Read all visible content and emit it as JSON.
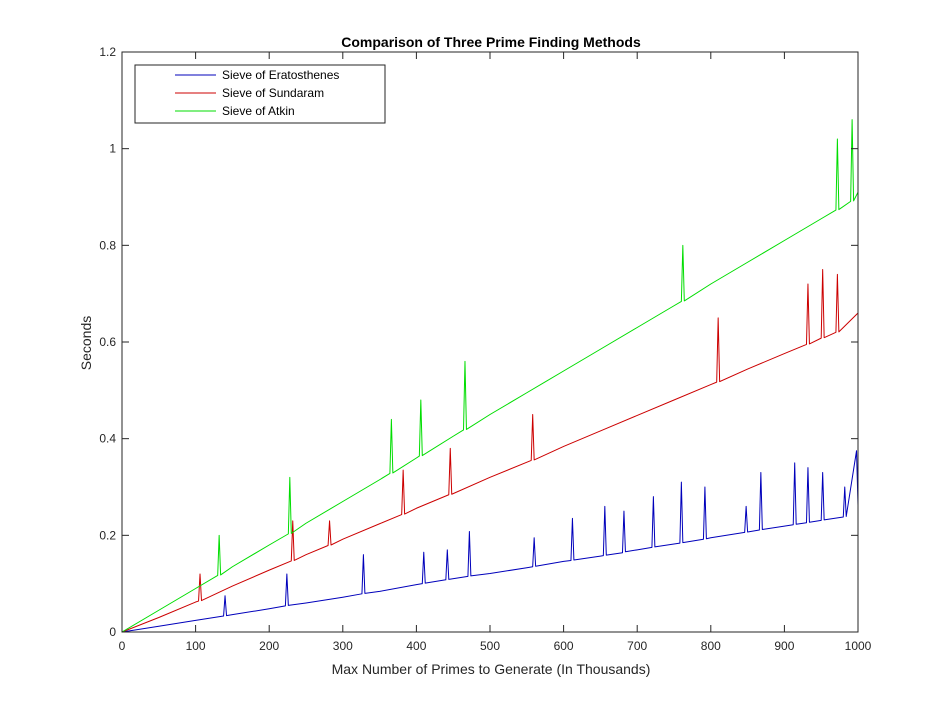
{
  "chart_data": {
    "type": "line",
    "title": "Comparison of Three Prime Finding Methods",
    "xlabel": "Max Number of Primes to Generate (In Thousands)",
    "ylabel": "Seconds",
    "xlim": [
      0,
      1000
    ],
    "ylim": [
      0,
      1.2
    ],
    "xticks": [
      "0",
      "100",
      "200",
      "300",
      "400",
      "500",
      "600",
      "700",
      "800",
      "900",
      "1000"
    ],
    "yticks": [
      "0",
      "0.2",
      "0.4",
      "0.6",
      "0.8",
      "1",
      "1.2"
    ],
    "grid": false,
    "legend_position": "top-left",
    "series": [
      {
        "name": "Sieve of Eratosthenes",
        "color": "#0000bb",
        "x": [
          0,
          50,
          100,
          138,
          140,
          142,
          150,
          200,
          222,
          224,
          226,
          250,
          300,
          326,
          328,
          330,
          350,
          400,
          408,
          410,
          412,
          440,
          442,
          444,
          470,
          472,
          474,
          500,
          550,
          558,
          560,
          562,
          600,
          610,
          612,
          614,
          650,
          654,
          656,
          658,
          680,
          682,
          684,
          700,
          720,
          722,
          724,
          750,
          758,
          760,
          762,
          790,
          792,
          794,
          800,
          846,
          848,
          850,
          866,
          868,
          870,
          900,
          912,
          914,
          916,
          930,
          932,
          934,
          950,
          952,
          954,
          980,
          982,
          984,
          998,
          1000
        ],
        "values": [
          0,
          0.012,
          0.024,
          0.033,
          0.075,
          0.034,
          0.036,
          0.048,
          0.054,
          0.12,
          0.055,
          0.06,
          0.072,
          0.079,
          0.16,
          0.08,
          0.084,
          0.098,
          0.1,
          0.165,
          0.101,
          0.108,
          0.17,
          0.109,
          0.115,
          0.208,
          0.116,
          0.121,
          0.133,
          0.135,
          0.195,
          0.136,
          0.146,
          0.148,
          0.235,
          0.149,
          0.157,
          0.158,
          0.26,
          0.159,
          0.164,
          0.25,
          0.166,
          0.17,
          0.175,
          0.28,
          0.176,
          0.182,
          0.184,
          0.31,
          0.185,
          0.192,
          0.3,
          0.193,
          0.195,
          0.206,
          0.26,
          0.207,
          0.211,
          0.33,
          0.212,
          0.219,
          0.222,
          0.35,
          0.223,
          0.226,
          0.34,
          0.227,
          0.231,
          0.33,
          0.232,
          0.238,
          0.3,
          0.239,
          0.375,
          0.262
        ]
      },
      {
        "name": "Sieve of Sundaram",
        "color": "#cc0000",
        "x": [
          0,
          50,
          100,
          104,
          106,
          108,
          150,
          200,
          230,
          232,
          234,
          250,
          280,
          282,
          284,
          300,
          350,
          380,
          382,
          384,
          400,
          444,
          446,
          448,
          500,
          556,
          558,
          560,
          600,
          650,
          700,
          750,
          800,
          808,
          810,
          812,
          850,
          900,
          930,
          932,
          934,
          950,
          952,
          954,
          970,
          972,
          974,
          1000
        ],
        "values": [
          0,
          0.03,
          0.062,
          0.064,
          0.12,
          0.065,
          0.095,
          0.128,
          0.147,
          0.23,
          0.148,
          0.16,
          0.179,
          0.23,
          0.18,
          0.192,
          0.224,
          0.243,
          0.335,
          0.244,
          0.256,
          0.284,
          0.38,
          0.285,
          0.32,
          0.355,
          0.45,
          0.356,
          0.384,
          0.416,
          0.448,
          0.48,
          0.512,
          0.517,
          0.65,
          0.518,
          0.544,
          0.576,
          0.595,
          0.72,
          0.596,
          0.608,
          0.75,
          0.609,
          0.62,
          0.74,
          0.621,
          0.66
        ]
      },
      {
        "name": "Sieve of Atkin",
        "color": "#00dd00",
        "x": [
          0,
          50,
          100,
          130,
          132,
          134,
          150,
          200,
          226,
          228,
          230,
          250,
          300,
          350,
          364,
          366,
          368,
          400,
          404,
          406,
          408,
          450,
          464,
          466,
          468,
          500,
          550,
          600,
          650,
          700,
          750,
          760,
          762,
          764,
          800,
          850,
          900,
          950,
          970,
          972,
          974,
          990,
          992,
          994,
          1000
        ],
        "values": [
          0,
          0.045,
          0.09,
          0.117,
          0.2,
          0.118,
          0.135,
          0.18,
          0.203,
          0.32,
          0.204,
          0.225,
          0.27,
          0.315,
          0.328,
          0.44,
          0.329,
          0.36,
          0.364,
          0.48,
          0.365,
          0.405,
          0.418,
          0.56,
          0.419,
          0.45,
          0.495,
          0.54,
          0.585,
          0.63,
          0.675,
          0.684,
          0.8,
          0.685,
          0.72,
          0.765,
          0.81,
          0.855,
          0.873,
          1.02,
          0.874,
          0.891,
          1.06,
          0.892,
          0.91
        ]
      }
    ]
  }
}
